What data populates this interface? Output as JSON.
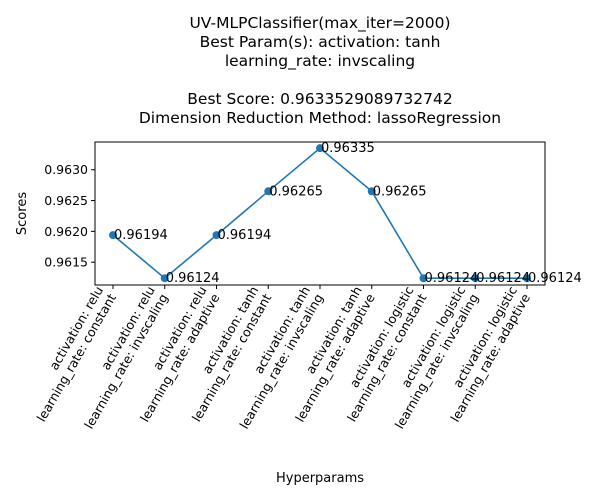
{
  "chart_data": {
    "type": "line",
    "title_lines": [
      "UV-MLPClassifier(max_iter=2000)",
      "Best Param(s): activation: tanh",
      "learning_rate: invscaling",
      "",
      "Best Score: 0.9633529089732742",
      "Dimension Reduction Method: lassoRegression"
    ],
    "xlabel": "Hyperparams",
    "ylabel": "Scores",
    "categories": [
      [
        "activation: relu",
        "learning_rate: constant"
      ],
      [
        "activation: relu",
        "learning_rate: invscaling"
      ],
      [
        "activation: relu",
        "learning_rate: adaptive"
      ],
      [
        "activation: tanh",
        "learning_rate: constant"
      ],
      [
        "activation: tanh",
        "learning_rate: invscaling"
      ],
      [
        "activation: tanh",
        "learning_rate: adaptive"
      ],
      [
        "activation: logistic",
        "learning_rate: constant"
      ],
      [
        "activation: logistic",
        "learning_rate: invscaling"
      ],
      [
        "activation: logistic",
        "learning_rate: adaptive"
      ]
    ],
    "values": [
      0.96194,
      0.96124,
      0.96194,
      0.96265,
      0.96335,
      0.96265,
      0.96124,
      0.96124,
      0.96124
    ],
    "data_labels": [
      "0.96194",
      "0.96124",
      "0.96194",
      "0.96265",
      "0.96335",
      "0.96265",
      "0.96124",
      "0.96124",
      "0.96124"
    ],
    "yticks": [
      0.9615,
      0.962,
      0.9625,
      0.963
    ],
    "ytick_labels": [
      "0.9615",
      "0.9620",
      "0.9625",
      "0.9630"
    ],
    "ylim": [
      0.96113,
      0.96345
    ],
    "grid": false,
    "line_color": "#1f77b4"
  }
}
